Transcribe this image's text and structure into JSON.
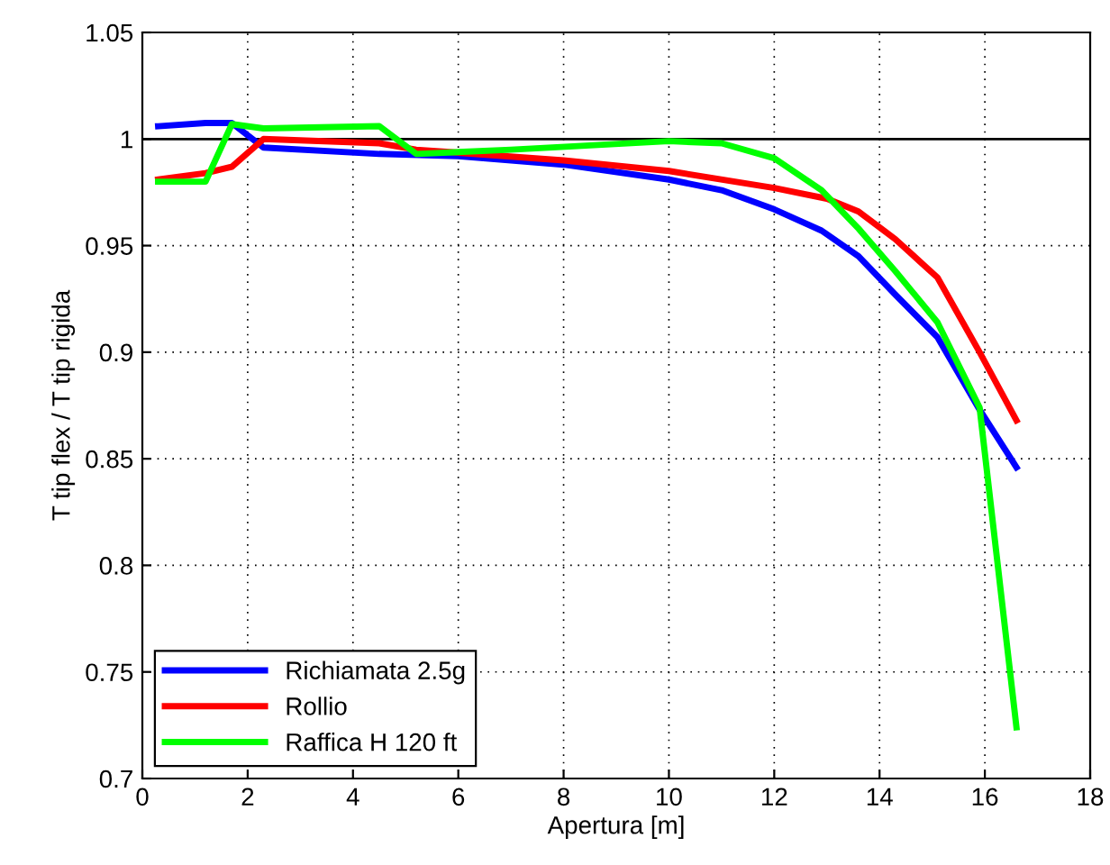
{
  "chart_data": {
    "type": "line",
    "xlabel": "Apertura [m]",
    "ylabel": "T tip flex / T tip rigida",
    "xlim": [
      0,
      18
    ],
    "xticks": [
      0,
      2,
      4,
      6,
      8,
      10,
      12,
      14,
      16,
      18
    ],
    "ylim": [
      0.7,
      1.05
    ],
    "yticks": [
      0.7,
      0.75,
      0.8,
      0.85,
      0.9,
      0.95,
      1,
      1.05
    ],
    "grid": true,
    "legend": "bottom left",
    "line_style": "solid",
    "marker": "none",
    "ref_lines": [
      {
        "axis": "y",
        "value": 1,
        "color": "#000000"
      }
    ],
    "series": [
      {
        "name": "Richiamata 2.5g",
        "color": "#0000ff",
        "x": [
          0.3,
          1.2,
          1.7,
          2.3,
          4.5,
          6,
          8,
          10,
          11,
          12,
          12.9,
          13.6,
          14.3,
          15.1,
          15.9,
          16.6
        ],
        "values": [
          1.006,
          1.0075,
          1.0075,
          0.996,
          0.993,
          0.992,
          0.988,
          0.981,
          0.976,
          0.967,
          0.957,
          0.945,
          0.927,
          0.907,
          0.873,
          0.846
        ]
      },
      {
        "name": "Rollio",
        "color": "#ff0000",
        "x": [
          0.3,
          1.2,
          1.7,
          2.3,
          4.5,
          5.2,
          8,
          10,
          12,
          13,
          13.6,
          14.3,
          15.1,
          15.9,
          16.6
        ],
        "values": [
          0.981,
          0.984,
          0.987,
          1.0,
          0.998,
          0.995,
          0.99,
          0.985,
          0.977,
          0.972,
          0.966,
          0.953,
          0.935,
          0.9,
          0.868
        ]
      },
      {
        "name": "Raffica H 120 ft",
        "color": "#00ff00",
        "x": [
          0.3,
          1.2,
          1.7,
          2.3,
          4.5,
          5.2,
          7,
          10,
          11,
          12,
          12.9,
          13.6,
          14.3,
          15.1,
          15.9,
          16.6
        ],
        "values": [
          0.98,
          0.98,
          1.007,
          1.005,
          1.006,
          0.993,
          0.995,
          0.999,
          0.998,
          0.991,
          0.976,
          0.958,
          0.938,
          0.914,
          0.874,
          0.724
        ]
      }
    ]
  }
}
